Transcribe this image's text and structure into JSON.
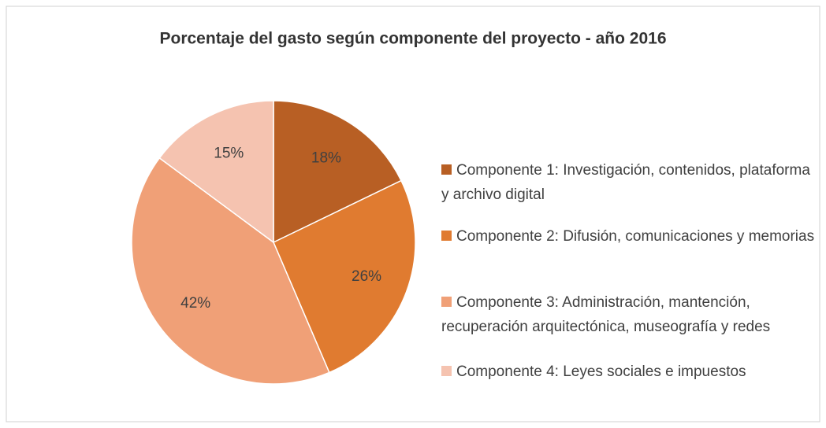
{
  "chart_data": {
    "type": "pie",
    "title": "Porcentaje del gasto según componente del proyecto - año 2016",
    "categories": [
      "Componente 1: Investigación, contenidos, plataforma y archivo digital",
      "Componente 2: Difusión, comunicaciones y memorias",
      "Componente 3: Administración, mantención, recuperación arquitectónica, museografía y redes",
      "Componente 4: Leyes sociales e impuestos"
    ],
    "values": [
      18,
      26,
      42,
      15
    ],
    "value_labels": [
      "18%",
      "26%",
      "42%",
      "15%"
    ],
    "colors": [
      "#b85f24",
      "#e07b30",
      "#f0a077",
      "#f5c3b0"
    ],
    "legend": "right"
  }
}
